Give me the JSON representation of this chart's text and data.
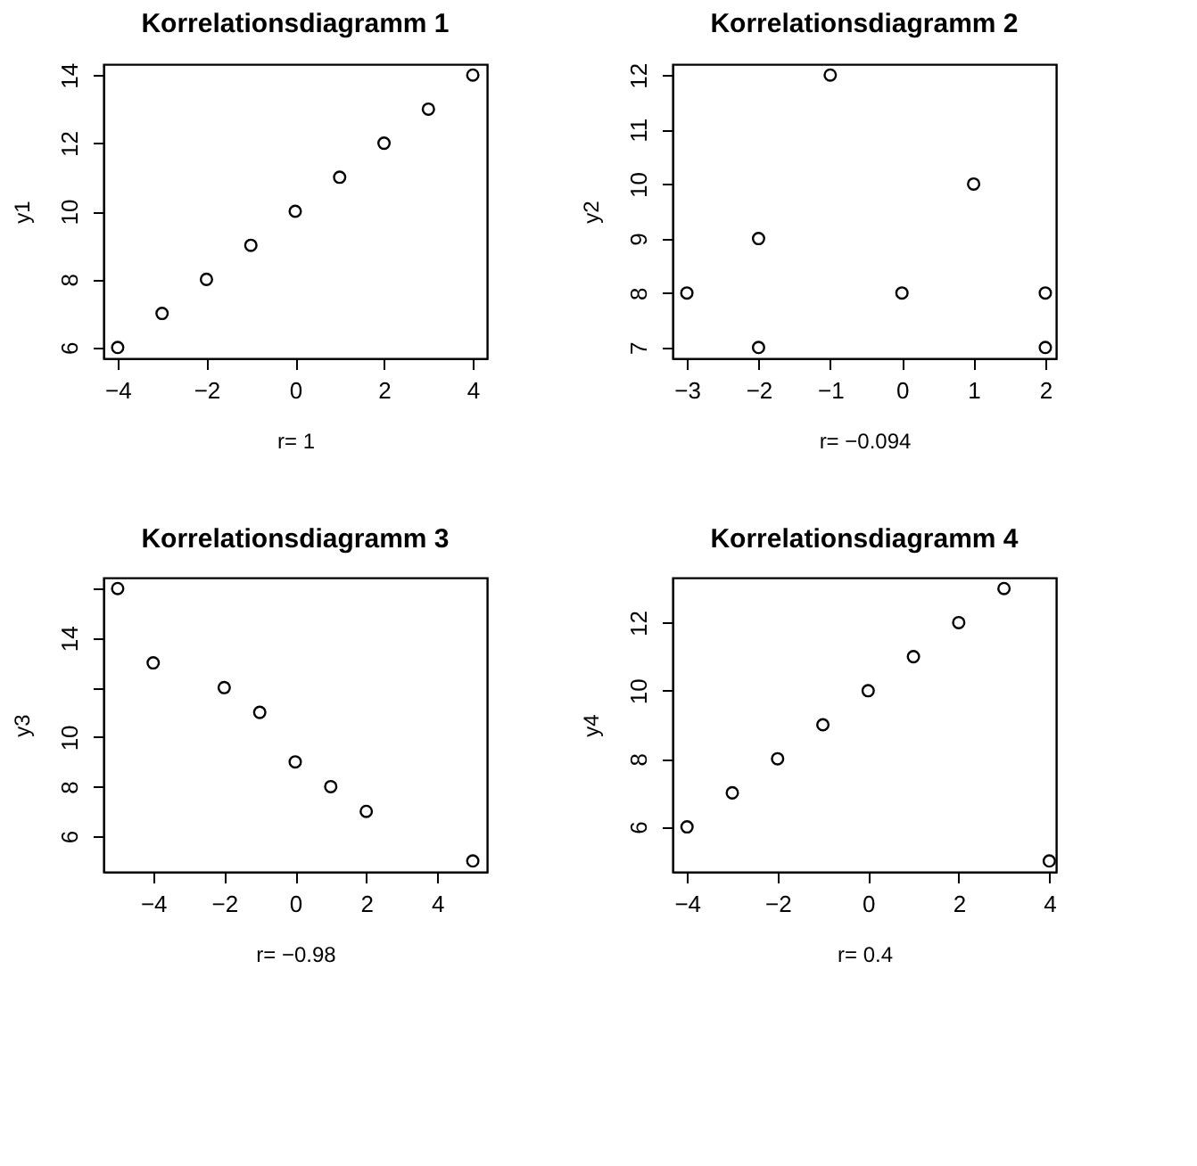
{
  "chart_data": [
    {
      "type": "scatter",
      "title": "Korrelationsdiagramm 1",
      "xlabel": "r= 1",
      "ylabel": "y1",
      "marker": "circle",
      "grid": false,
      "x": [
        -4,
        -3,
        -2,
        -1,
        0,
        1,
        2,
        3,
        4
      ],
      "series": [
        {
          "color": "#000000",
          "values": [
            6,
            7,
            8,
            9,
            10,
            11,
            12,
            13,
            14
          ]
        }
      ],
      "xlim": [
        -4.32,
        4.32
      ],
      "ylim": [
        5.68,
        14.32
      ],
      "xticks": [
        -4,
        -2,
        0,
        2,
        4
      ],
      "yticks": [
        6,
        8,
        10,
        12,
        14
      ]
    },
    {
      "type": "scatter",
      "title": "Korrelationsdiagramm 2",
      "xlabel": "r= −0.094",
      "ylabel": "y2",
      "marker": "circle",
      "grid": false,
      "x": [
        -3,
        -2,
        -2,
        -1,
        0,
        1,
        2,
        2
      ],
      "series": [
        {
          "color": "#000000",
          "values": [
            8,
            9,
            7,
            12,
            8,
            10,
            8,
            7
          ]
        }
      ],
      "xlim": [
        -3.2,
        2.15
      ],
      "ylim": [
        6.8,
        12.2
      ],
      "xticks": [
        -3,
        -2,
        -1,
        0,
        1,
        2
      ],
      "yticks": [
        7,
        8,
        9,
        10,
        11,
        12
      ]
    },
    {
      "type": "scatter",
      "title": "Korrelationsdiagramm 3",
      "xlabel": "r= −0.98",
      "ylabel": "y3",
      "marker": "circle",
      "grid": false,
      "x": [
        -5,
        -4,
        -2,
        -1,
        0,
        1,
        2,
        5
      ],
      "series": [
        {
          "color": "#000000",
          "values": [
            16,
            13,
            12,
            11,
            9,
            8,
            7,
            5
          ]
        }
      ],
      "xlim": [
        -5.4,
        5.4
      ],
      "ylim": [
        4.56,
        16.44
      ],
      "xticks": [
        -4,
        -2,
        0,
        2,
        4
      ],
      "yticks": [
        6,
        8,
        10,
        {
          "value": 12,
          "label": null
        },
        14,
        {
          "value": 16,
          "label": null
        }
      ]
    },
    {
      "type": "scatter",
      "title": "Korrelationsdiagramm 4",
      "xlabel": "r= 0.4",
      "ylabel": "y4",
      "marker": "circle",
      "grid": false,
      "x": [
        -4,
        -3,
        -2,
        -1,
        0,
        1,
        2,
        3,
        4
      ],
      "series": [
        {
          "color": "#000000",
          "values": [
            6,
            7,
            8,
            9,
            10,
            11,
            12,
            13,
            5
          ]
        }
      ],
      "xlim": [
        -4.32,
        4.15
      ],
      "ylim": [
        4.68,
        13.32
      ],
      "xticks": [
        -4,
        -2,
        0,
        2,
        4
      ],
      "yticks": [
        6,
        8,
        10,
        12
      ]
    }
  ]
}
